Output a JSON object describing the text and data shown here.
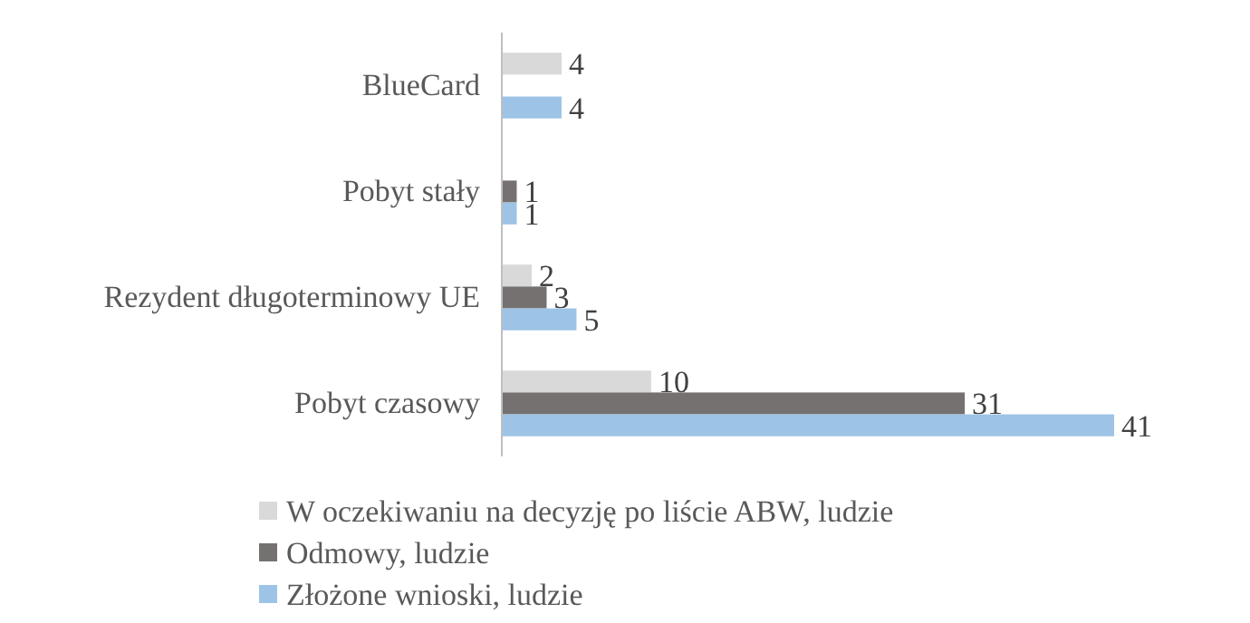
{
  "chart_data": {
    "type": "bar",
    "orientation": "horizontal",
    "categories": [
      "BlueCard",
      "Pobyt stały",
      "Rezydent długoterminowy UE",
      "Pobyt czasowy"
    ],
    "series": [
      {
        "name": "W oczekiwaniu na decyzję po liście ABW, ludzie",
        "color": "#d9d9d9",
        "values": [
          4,
          null,
          2,
          10
        ]
      },
      {
        "name": "Odmowy, ludzie",
        "color": "#767171",
        "values": [
          null,
          1,
          3,
          31
        ]
      },
      {
        "name": "Złożone wnioski, ludzie",
        "color": "#9dc3e6",
        "values": [
          4,
          1,
          5,
          41
        ]
      }
    ],
    "data_labels": true,
    "legend": "bottom",
    "grid": false
  }
}
